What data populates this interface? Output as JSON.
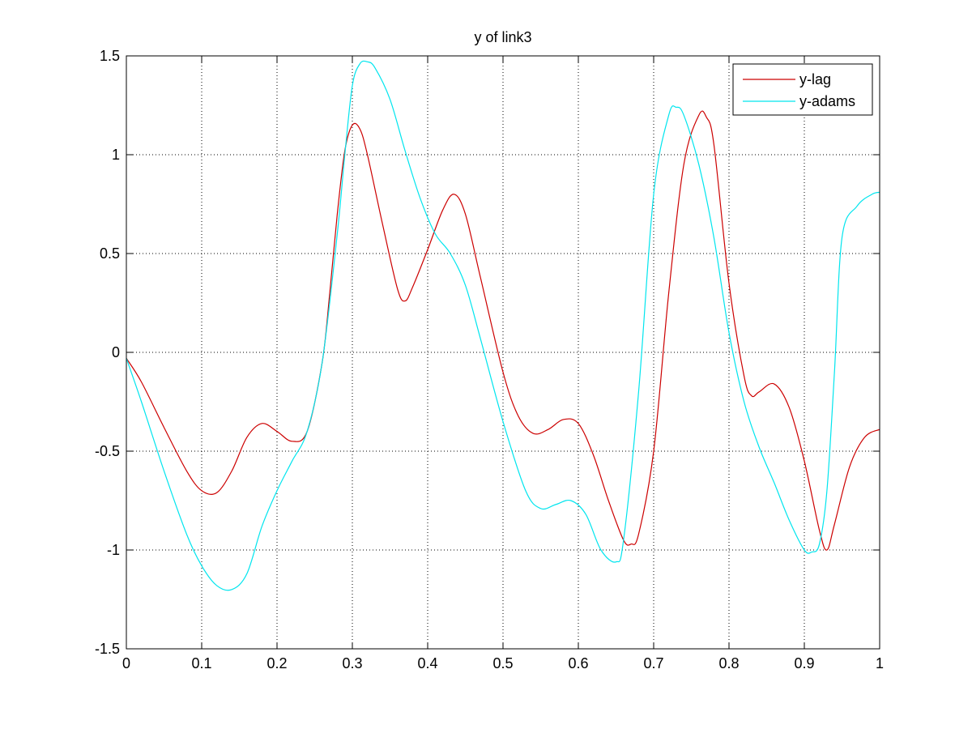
{
  "chart_data": {
    "type": "line",
    "title": "y of link3",
    "xlabel": "",
    "ylabel": "",
    "xlim": [
      0,
      1
    ],
    "ylim": [
      -1.5,
      1.5
    ],
    "xticks": [
      "0",
      "0.1",
      "0.2",
      "0.3",
      "0.4",
      "0.5",
      "0.6",
      "0.7",
      "0.8",
      "0.9",
      "1"
    ],
    "yticks": [
      "-1.5",
      "-1",
      "-0.5",
      "0",
      "0.5",
      "1",
      "1.5"
    ],
    "grid": true,
    "legend_position": "top-right",
    "series": [
      {
        "name": "y-lag",
        "color": "#cc0000",
        "x": [
          0,
          0.02,
          0.05,
          0.08,
          0.1,
          0.12,
          0.14,
          0.16,
          0.18,
          0.2,
          0.22,
          0.24,
          0.26,
          0.27,
          0.28,
          0.29,
          0.3,
          0.31,
          0.32,
          0.34,
          0.36,
          0.37,
          0.38,
          0.4,
          0.42,
          0.435,
          0.45,
          0.47,
          0.5,
          0.52,
          0.54,
          0.56,
          0.58,
          0.6,
          0.62,
          0.64,
          0.66,
          0.67,
          0.68,
          0.7,
          0.72,
          0.74,
          0.76,
          0.77,
          0.78,
          0.8,
          0.82,
          0.83,
          0.84,
          0.86,
          0.88,
          0.9,
          0.92,
          0.93,
          0.94,
          0.96,
          0.98,
          1.0
        ],
        "y": [
          -0.03,
          -0.15,
          -0.38,
          -0.6,
          -0.7,
          -0.71,
          -0.6,
          -0.43,
          -0.36,
          -0.4,
          -0.45,
          -0.4,
          -0.05,
          0.3,
          0.7,
          1.02,
          1.15,
          1.13,
          1.0,
          0.65,
          0.32,
          0.26,
          0.33,
          0.52,
          0.72,
          0.8,
          0.7,
          0.38,
          -0.1,
          -0.32,
          -0.41,
          -0.39,
          -0.34,
          -0.36,
          -0.52,
          -0.75,
          -0.95,
          -0.97,
          -0.92,
          -0.5,
          0.3,
          0.95,
          1.2,
          1.19,
          1.05,
          0.35,
          -0.12,
          -0.22,
          -0.2,
          -0.16,
          -0.28,
          -0.55,
          -0.9,
          -1.0,
          -0.87,
          -0.58,
          -0.43,
          -0.39
        ]
      },
      {
        "name": "y-adams",
        "color": "#00e5ee",
        "x": [
          0,
          0.02,
          0.05,
          0.08,
          0.1,
          0.12,
          0.14,
          0.16,
          0.18,
          0.2,
          0.22,
          0.24,
          0.26,
          0.28,
          0.29,
          0.3,
          0.31,
          0.32,
          0.33,
          0.35,
          0.37,
          0.39,
          0.41,
          0.43,
          0.45,
          0.47,
          0.5,
          0.53,
          0.55,
          0.57,
          0.59,
          0.61,
          0.63,
          0.65,
          0.66,
          0.68,
          0.7,
          0.72,
          0.73,
          0.74,
          0.76,
          0.78,
          0.8,
          0.82,
          0.84,
          0.86,
          0.88,
          0.9,
          0.91,
          0.92,
          0.93,
          0.94,
          0.95,
          0.97,
          0.99,
          1.0
        ],
        "y": [
          -0.03,
          -0.25,
          -0.6,
          -0.92,
          -1.08,
          -1.18,
          -1.2,
          -1.12,
          -0.88,
          -0.7,
          -0.55,
          -0.4,
          -0.05,
          0.6,
          1.0,
          1.35,
          1.46,
          1.47,
          1.44,
          1.28,
          1.02,
          0.78,
          0.6,
          0.5,
          0.34,
          0.07,
          -0.35,
          -0.7,
          -0.79,
          -0.77,
          -0.75,
          -0.82,
          -1.0,
          -1.06,
          -0.95,
          -0.2,
          0.8,
          1.2,
          1.24,
          1.2,
          0.95,
          0.58,
          0.1,
          -0.25,
          -0.48,
          -0.66,
          -0.85,
          -1.0,
          -1.01,
          -0.97,
          -0.7,
          -0.1,
          0.58,
          0.74,
          0.8,
          0.81
        ]
      }
    ]
  }
}
